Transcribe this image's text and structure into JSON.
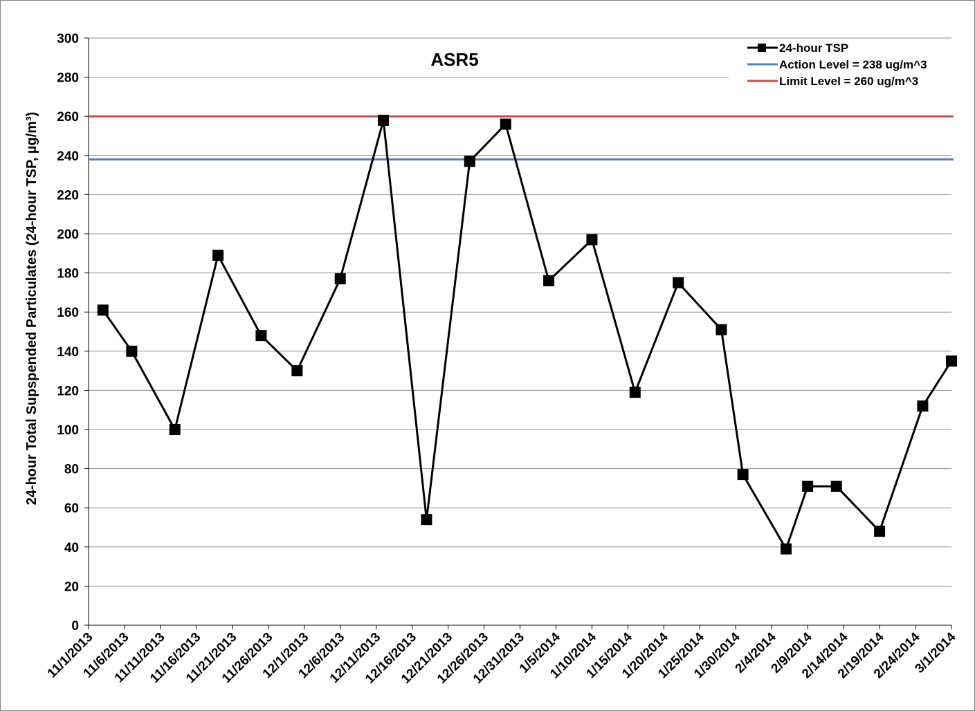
{
  "chart_data": {
    "type": "line",
    "title": "ASR5",
    "ylabel": "24-hour Total Supspended Particulates (24-hour TSP, µg/m³)",
    "xlabel": "",
    "ylim": [
      0,
      300
    ],
    "yticks": [
      0,
      20,
      40,
      60,
      80,
      100,
      120,
      140,
      160,
      180,
      200,
      220,
      240,
      260,
      280,
      300
    ],
    "x_axis_range": [
      "11/1/2013",
      "3/1/2014"
    ],
    "xticks": [
      "11/1/2013",
      "11/6/2013",
      "11/11/2013",
      "11/16/2013",
      "11/21/2013",
      "11/26/2013",
      "12/1/2013",
      "12/6/2013",
      "12/11/2013",
      "12/16/2013",
      "12/21/2013",
      "12/26/2013",
      "12/31/2013",
      "1/5/2014",
      "1/10/2014",
      "1/15/2014",
      "1/20/2014",
      "1/25/2014",
      "1/30/2014",
      "2/4/2014",
      "2/9/2014",
      "2/14/2014",
      "2/19/2014",
      "2/24/2014",
      "3/1/2014"
    ],
    "grid": "horizontal",
    "legend_position": "top-right",
    "series": [
      {
        "name": "24-hour TSP",
        "color": "#000000",
        "marker": "square",
        "points": [
          {
            "x": "11/3/2013",
            "y": 161
          },
          {
            "x": "11/7/2013",
            "y": 140
          },
          {
            "x": "11/13/2013",
            "y": 100
          },
          {
            "x": "11/19/2013",
            "y": 189
          },
          {
            "x": "11/25/2013",
            "y": 148
          },
          {
            "x": "11/30/2013",
            "y": 130
          },
          {
            "x": "12/6/2013",
            "y": 177
          },
          {
            "x": "12/12/2013",
            "y": 258
          },
          {
            "x": "12/18/2013",
            "y": 54
          },
          {
            "x": "12/24/2013",
            "y": 237
          },
          {
            "x": "12/29/2013",
            "y": 256
          },
          {
            "x": "1/4/2014",
            "y": 176
          },
          {
            "x": "1/10/2014",
            "y": 197
          },
          {
            "x": "1/16/2014",
            "y": 119
          },
          {
            "x": "1/22/2014",
            "y": 175
          },
          {
            "x": "1/28/2014",
            "y": 151
          },
          {
            "x": "1/31/2014",
            "y": 77
          },
          {
            "x": "2/6/2014",
            "y": 39
          },
          {
            "x": "2/9/2014",
            "y": 71
          },
          {
            "x": "2/13/2014",
            "y": 71
          },
          {
            "x": "2/19/2014",
            "y": 48
          },
          {
            "x": "2/25/2014",
            "y": 112
          },
          {
            "x": "3/1/2014",
            "y": 135
          }
        ]
      },
      {
        "name": "Action Level = 238 ug/m^3",
        "color": "#4f81bd",
        "type": "constant",
        "value": 238
      },
      {
        "name": "Limit Level = 260 ug/m^3",
        "color": "#c0504d",
        "type": "constant",
        "value": 260
      }
    ]
  }
}
